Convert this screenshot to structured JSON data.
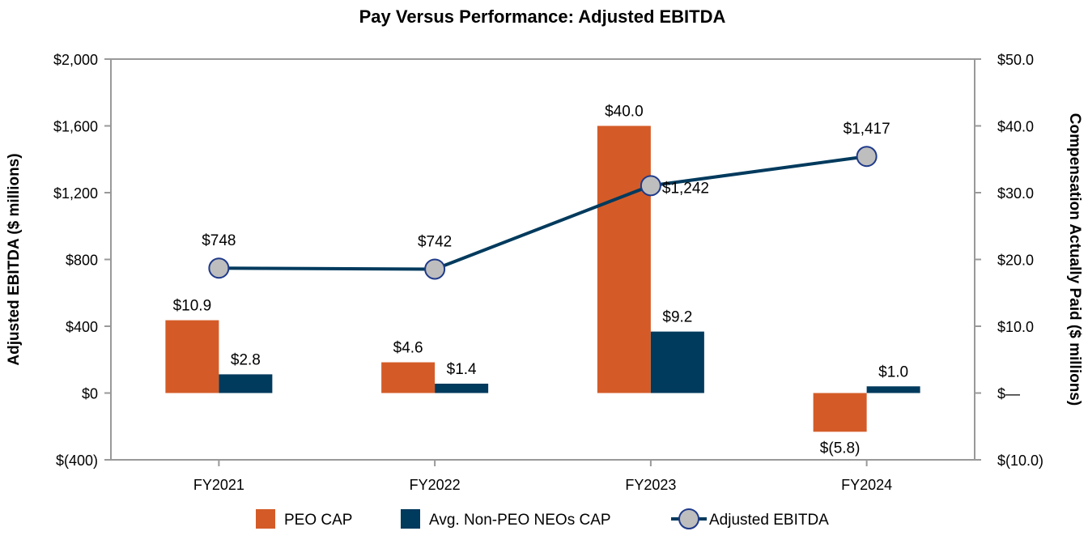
{
  "chart_data": {
    "type": "bar",
    "title": "Pay Versus Performance: Adjusted EBITDA",
    "categories": [
      "FY2021",
      "FY2022",
      "FY2023",
      "FY2024"
    ],
    "ylabel_left": "Adjusted EBITDA ($ millions)",
    "ylabel_right": "Compensation Actually Paid ($ millions)",
    "ylim_left": [
      -400,
      2000
    ],
    "ylim_right": [
      -10,
      50
    ],
    "yticks_left": [
      -400,
      0,
      400,
      800,
      1200,
      1600,
      2000
    ],
    "yticks_left_labels": [
      "$(400)",
      "$0",
      "$400",
      "$800",
      "$1,200",
      "$1,600",
      "$2,000"
    ],
    "yticks_right": [
      -10,
      0,
      10,
      20,
      30,
      40,
      50
    ],
    "yticks_right_labels": [
      "$(10.0)",
      "$—",
      "$10.0",
      "$20.0",
      "$30.0",
      "$40.0",
      "$50.0"
    ],
    "series": [
      {
        "name": "PEO CAP",
        "axis": "right",
        "kind": "bar",
        "color": "#D45B27",
        "values": [
          10.9,
          4.6,
          40.0,
          -5.8
        ],
        "labels": [
          "$10.9",
          "$4.6",
          "$40.0",
          "$(5.8)"
        ]
      },
      {
        "name": "Avg. Non-PEO NEOs CAP",
        "axis": "right",
        "kind": "bar",
        "color": "#003A5D",
        "values": [
          2.8,
          1.4,
          9.2,
          1.0
        ],
        "labels": [
          "$2.8",
          "$1.4",
          "$9.2",
          "$1.0"
        ]
      },
      {
        "name": "Adjusted EBITDA",
        "axis": "left",
        "kind": "line",
        "color": "#003A5D",
        "marker_color": "#BEBEBE",
        "values": [
          748,
          742,
          1242,
          1417
        ],
        "labels": [
          "$748",
          "$742",
          "$1,242",
          "$1,417"
        ]
      }
    ],
    "legend_position": "bottom"
  }
}
